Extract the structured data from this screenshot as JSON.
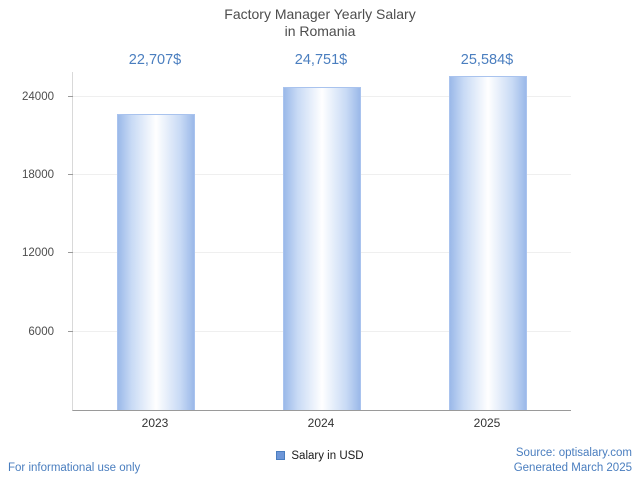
{
  "title": {
    "line1": "Factory Manager Yearly Salary",
    "line2": "in Romania"
  },
  "legend": {
    "label": "Salary in USD"
  },
  "footer": {
    "left": "For informational use only",
    "source": "Source: optisalary.com",
    "generated": "Generated March 2025"
  },
  "chart_data": {
    "type": "bar",
    "title": "Factory Manager Yearly Salary in Romania",
    "categories": [
      "2023",
      "2024",
      "2025"
    ],
    "values": [
      22707,
      24751,
      25584
    ],
    "value_labels": [
      "22,707$",
      "24,751$",
      "25,584$"
    ],
    "series": [
      {
        "name": "Salary in USD",
        "values": [
          22707,
          24751,
          25584
        ]
      }
    ],
    "xlabel": "",
    "ylabel": "",
    "ylim": [
      0,
      25900
    ],
    "yticks": [
      6000,
      12000,
      18000,
      24000
    ],
    "grid": true,
    "legend_position": "bottom",
    "colors": {
      "bar_edge": "#9bb9e9",
      "bar_center": "#ffffff",
      "bar_border": "#a9c3ee",
      "accent_text": "#4a7ebf",
      "title_text": "#4d4d4d"
    }
  }
}
